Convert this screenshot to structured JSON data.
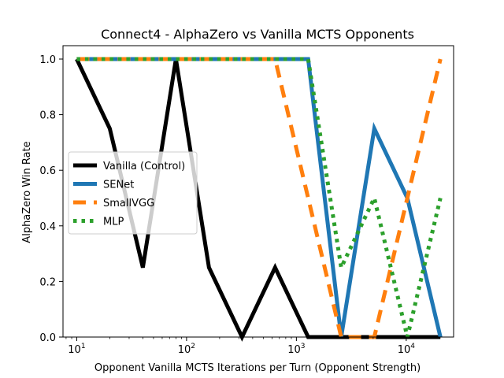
{
  "chart_data": {
    "type": "line",
    "title": "Connect4 - AlphaZero vs Vanilla MCTS Opponents",
    "xlabel": "Opponent Vanilla MCTS Iterations per Turn (Opponent Strength)",
    "ylabel": "AlphaZero Win Rate",
    "x_scale": "log",
    "xlim": [
      7.5,
      27000
    ],
    "ylim": [
      0,
      1.0
    ],
    "x_ticks": [
      {
        "value": 10,
        "base": "10",
        "exp": "1"
      },
      {
        "value": 100,
        "base": "10",
        "exp": "2"
      },
      {
        "value": 1000,
        "base": "10",
        "exp": "3"
      },
      {
        "value": 10000,
        "base": "10",
        "exp": "4"
      }
    ],
    "y_ticks": [
      "0.0",
      "0.2",
      "0.4",
      "0.6",
      "0.8",
      "1.0"
    ],
    "x": [
      10,
      20,
      40,
      80,
      160,
      320,
      640,
      1280,
      2560,
      5120,
      10240,
      20480
    ],
    "series": [
      {
        "name": "Vanilla (Control)",
        "color": "#000000",
        "style": "solid",
        "values": [
          1.0,
          0.75,
          0.25,
          1.0,
          0.25,
          0.0,
          0.25,
          0.0,
          0.0,
          0.0,
          0.0,
          0.0
        ]
      },
      {
        "name": "SENet",
        "color": "#1f77b4",
        "style": "solid",
        "values": [
          1.0,
          1.0,
          1.0,
          1.0,
          1.0,
          1.0,
          1.0,
          1.0,
          0.0,
          0.75,
          0.5,
          0.0
        ]
      },
      {
        "name": "SmallVGG",
        "color": "#ff7f0e",
        "style": "dashed",
        "values": [
          1.0,
          1.0,
          1.0,
          1.0,
          1.0,
          1.0,
          1.0,
          0.5,
          0.0,
          0.0,
          0.5,
          1.0
        ]
      },
      {
        "name": "MLP",
        "color": "#2ca02c",
        "style": "dotted",
        "values": [
          1.0,
          1.0,
          1.0,
          1.0,
          1.0,
          1.0,
          1.0,
          1.0,
          0.25,
          0.5,
          0.0,
          0.5
        ]
      }
    ],
    "grid": false,
    "legend_position": "center-left"
  }
}
